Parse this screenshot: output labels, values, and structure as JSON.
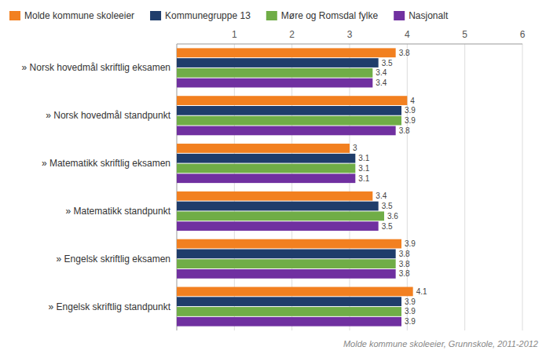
{
  "chart_data": {
    "type": "bar",
    "orientation": "horizontal",
    "categories": [
      "» Norsk hovedmål skriftlig eksamen",
      "» Norsk hovedmål standpunkt",
      "» Matematikk skriftlig eksamen",
      "» Matematikk standpunkt",
      "» Engelsk skriftlig eksamen",
      "» Engelsk skriftlig standpunkt"
    ],
    "series": [
      {
        "name": "Molde kommune skoleeier",
        "color": "#F28020",
        "values": [
          3.8,
          4.0,
          3.0,
          3.4,
          3.9,
          4.1
        ]
      },
      {
        "name": "Kommunegruppe 13",
        "color": "#1F3D6B",
        "values": [
          3.5,
          3.9,
          3.1,
          3.5,
          3.8,
          3.9
        ]
      },
      {
        "name": "Møre og Romsdal fylke",
        "color": "#70AD47",
        "values": [
          3.4,
          3.9,
          3.1,
          3.6,
          3.8,
          3.9
        ]
      },
      {
        "name": "Nasjonalt",
        "color": "#7030A0",
        "values": [
          3.4,
          3.8,
          3.1,
          3.5,
          3.8,
          3.9
        ]
      }
    ],
    "xlim": [
      0,
      6
    ],
    "xticks": [
      1,
      2,
      3,
      4,
      5,
      6
    ],
    "grid": true,
    "legend": "top",
    "data_labels": true,
    "annotations": [
      "Molde kommune skoleeier, Grunnskole, 2011-2012"
    ]
  }
}
